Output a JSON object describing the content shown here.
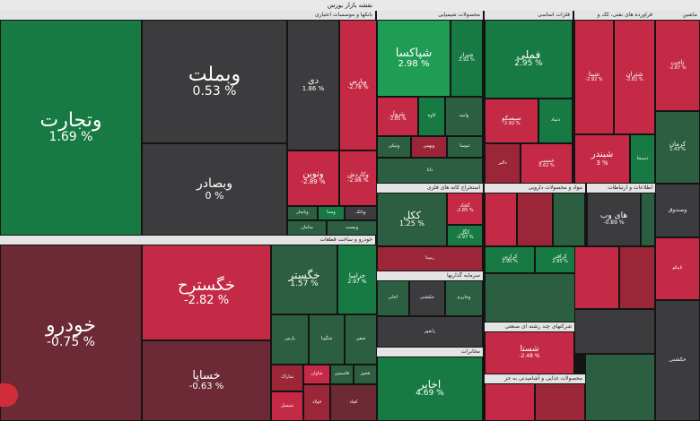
{
  "title": "نقشه بازار بورس",
  "headers": {
    "banks": "بانکها و موسسات اعتباری",
    "chemical": "محصولات شیمیایی",
    "basic_metals": "فلزات اساسی",
    "oil": "فراورده های نفتی، کک و",
    "mining": "استخراج کانه های فلزی",
    "pharma": "مواد و محصولات دارویی",
    "it": "اطلاعات و ارتباطات",
    "auto": "خودرو و ساخت قطعات",
    "investment": "سرمایه گذاریها",
    "food": "محصولات غذایی و آشامیدنی به جز",
    "multi": "شرکتهای چند رشته ای صنعتی",
    "telecom": "مخابرات"
  },
  "tiles": {
    "vtejarat": {
      "name": "وتجارت",
      "pct": "1.69 %"
    },
    "vbemellat": {
      "name": "وبملت",
      "pct": "0.53 %"
    },
    "vbsader": {
      "name": "وبصادر",
      "pct": "0 %"
    },
    "khodro": {
      "name": "خودرو",
      "pct": "-0.75 %"
    },
    "khgostarah": {
      "name": "خگسترح",
      "pct": "-2.82 %"
    },
    "khgostar": {
      "name": "خگستر",
      "pct": "1.57 %"
    },
    "khsapa": {
      "name": "خساپا",
      "pct": "-0.63 %"
    },
    "shpaksa": {
      "name": "شپاکسا",
      "pct": "2.98 %"
    },
    "fameli": {
      "name": "فملی",
      "pct": "2.95 %"
    },
    "kekal": {
      "name": "ککل",
      "pct": "1.25 %"
    },
    "akhaber": {
      "name": "اخابر",
      "pct": "4.69 %"
    },
    "shebandar": {
      "name": "شبندر",
      "pct": "3 %"
    },
    "shasta": {
      "name": "شستا",
      "pct": "-2.48 %"
    },
    "hywab": {
      "name": "های وب",
      "pct": "-0.89 %"
    },
    "di": {
      "name": "دی",
      "pct": "1.86 %"
    },
    "vpars": {
      "name": "وپارس",
      "pct": "-2.78 %"
    },
    "vnovin": {
      "name": "ونوین",
      "pct": "-2.89 %"
    },
    "vkardesh": {
      "name": "وکاردش",
      "pct": "-2.98 %"
    },
    "kharamia": {
      "name": "خزامیا",
      "pct": "2.97 %"
    },
    "shepna": {
      "name": "شپنا",
      "pct": "-2.92 %"
    },
    "shatran": {
      "name": "شتران",
      "pct": "-2.82 %"
    },
    "takhat": {
      "name": "تاخت",
      "pct": "-2.87 %"
    },
    "kerman": {
      "name": "کرمان",
      "pct": "1.43 %"
    },
    "petrol": {
      "name": "پترول",
      "pct": "-2.85 %"
    },
    "kajad": {
      "name": "کجاد",
      "pct": "-2.85 %"
    },
    "kgol": {
      "name": "کگل",
      "pct": "-2.97 %"
    },
    "shiraz": {
      "name": "شیراز",
      "pct": "2.92 %"
    },
    "khomesi": {
      "name": "خمسی",
      "pct": "0.62 %"
    },
    "siskou": {
      "name": "سیسکو",
      "pct": "-2.92 %"
    },
    "kerazin": {
      "name": "کرازین",
      "pct": "2.95 %"
    },
    "kerafi": {
      "name": "کرافی",
      "pct": "2.95 %"
    },
    "vendad": {
      "name": "وصندوق",
      "pct": ""
    },
    "hkeshti": {
      "name": "حکشتی",
      "pct": ""
    }
  },
  "small_labels": [
    "سامان",
    "وبانک",
    "وسنا",
    "وپاسار",
    "وبیست",
    "پارس",
    "شگویا",
    "شفن",
    "شاراک",
    "شاوان",
    "فاسمین",
    "فخوز",
    "شیسل",
    "فولاد",
    "کچاد",
    "کاوه",
    "وامید",
    "ونیکی",
    "وبهمن",
    "ثنوسا",
    "دانا",
    "دتماد",
    "دالبر",
    "دسبحا",
    "تاپیکو",
    "رمپنا",
    "اخابر",
    "حکشتی",
    "وخارزم",
    "رانفور"
  ]
}
